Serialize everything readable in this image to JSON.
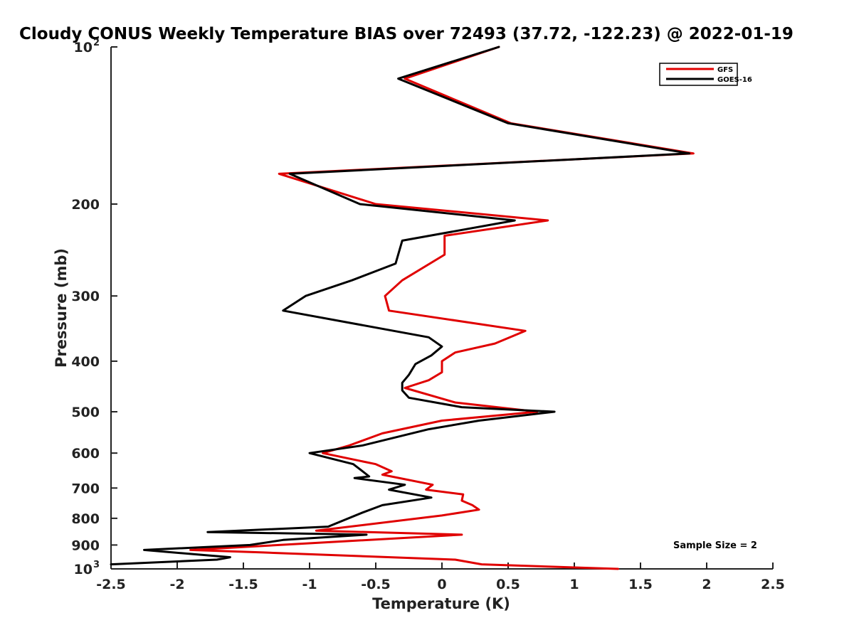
{
  "chart_data": {
    "type": "line",
    "title": "Cloudy CONUS Weekly Temperature BIAS over 72493 (37.72, -122.23) @ 2022-01-19",
    "xlabel": "Temperature (K)",
    "ylabel": "Pressure (mb)",
    "xlim": [
      -2.5,
      2.5
    ],
    "ylim": [
      100,
      1000
    ],
    "y_scale": "log",
    "y_reversed": true,
    "grid": false,
    "legend_position": "top-right",
    "x_ticks": [
      "-2.5",
      "-2",
      "-1.5",
      "-1",
      "-0.5",
      "0",
      "0.5",
      "1",
      "1.5",
      "2",
      "2.5"
    ],
    "y_ticks": [
      {
        "value": 100,
        "label": "10",
        "exp": "2"
      },
      {
        "value": 200,
        "label": "200"
      },
      {
        "value": 300,
        "label": "300"
      },
      {
        "value": 400,
        "label": "400"
      },
      {
        "value": 500,
        "label": "500"
      },
      {
        "value": 600,
        "label": "600"
      },
      {
        "value": 700,
        "label": "700"
      },
      {
        "value": 800,
        "label": "800"
      },
      {
        "value": 900,
        "label": "900"
      },
      {
        "value": 1000,
        "label": "10",
        "exp": "3"
      }
    ],
    "series": [
      {
        "name": "GFS",
        "color": "#e00000",
        "points": [
          [
            0.43,
            100
          ],
          [
            -0.28,
            115
          ],
          [
            0.52,
            140
          ],
          [
            1.9,
            160
          ],
          [
            -1.23,
            175
          ],
          [
            -0.5,
            200
          ],
          [
            0.8,
            215
          ],
          [
            0.02,
            230
          ],
          [
            0.02,
            250
          ],
          [
            -0.3,
            280
          ],
          [
            -0.43,
            300
          ],
          [
            -0.4,
            320
          ],
          [
            0.63,
            350
          ],
          [
            0.4,
            370
          ],
          [
            0.1,
            385
          ],
          [
            0.0,
            400
          ],
          [
            0.0,
            420
          ],
          [
            -0.1,
            435
          ],
          [
            -0.28,
            450
          ],
          [
            0.1,
            480
          ],
          [
            0.72,
            500
          ],
          [
            0.0,
            520
          ],
          [
            -0.45,
            550
          ],
          [
            -0.7,
            580
          ],
          [
            -0.9,
            600
          ],
          [
            -0.5,
            630
          ],
          [
            -0.38,
            650
          ],
          [
            -0.45,
            660
          ],
          [
            -0.07,
            690
          ],
          [
            -0.12,
            705
          ],
          [
            0.16,
            720
          ],
          [
            0.15,
            740
          ],
          [
            0.23,
            755
          ],
          [
            0.28,
            770
          ],
          [
            0.0,
            790
          ],
          [
            -0.95,
            845
          ],
          [
            0.15,
            860
          ],
          [
            -1.9,
            920
          ],
          [
            -1.35,
            930
          ],
          [
            0.1,
            960
          ],
          [
            0.3,
            980
          ],
          [
            1.33,
            1000
          ]
        ]
      },
      {
        "name": "GOES-16",
        "color": "#000000",
        "points": [
          [
            0.43,
            100
          ],
          [
            -0.33,
            115
          ],
          [
            0.5,
            140
          ],
          [
            1.87,
            160
          ],
          [
            -1.15,
            175
          ],
          [
            -0.62,
            200
          ],
          [
            0.55,
            215
          ],
          [
            -0.3,
            235
          ],
          [
            -0.35,
            260
          ],
          [
            -0.68,
            280
          ],
          [
            -1.03,
            300
          ],
          [
            -1.2,
            320
          ],
          [
            -0.1,
            360
          ],
          [
            0.0,
            375
          ],
          [
            -0.08,
            390
          ],
          [
            -0.2,
            405
          ],
          [
            -0.25,
            425
          ],
          [
            -0.3,
            440
          ],
          [
            -0.3,
            455
          ],
          [
            -0.25,
            470
          ],
          [
            0.15,
            490
          ],
          [
            0.85,
            500
          ],
          [
            0.28,
            520
          ],
          [
            -0.1,
            540
          ],
          [
            -0.6,
            580
          ],
          [
            -1.0,
            600
          ],
          [
            -0.67,
            630
          ],
          [
            -0.6,
            650
          ],
          [
            -0.55,
            665
          ],
          [
            -0.66,
            670
          ],
          [
            -0.28,
            690
          ],
          [
            -0.4,
            705
          ],
          [
            -0.08,
            730
          ],
          [
            -0.45,
            755
          ],
          [
            -0.6,
            780
          ],
          [
            -0.86,
            830
          ],
          [
            -1.77,
            850
          ],
          [
            -0.57,
            860
          ],
          [
            -1.2,
            880
          ],
          [
            -1.45,
            900
          ],
          [
            -2.25,
            920
          ],
          [
            -1.6,
            950
          ],
          [
            -1.7,
            960
          ],
          [
            -2.5,
            980
          ]
        ]
      }
    ],
    "legend": [
      "GFS",
      "GOES-16"
    ],
    "annotation": "Sample Size = 2"
  }
}
